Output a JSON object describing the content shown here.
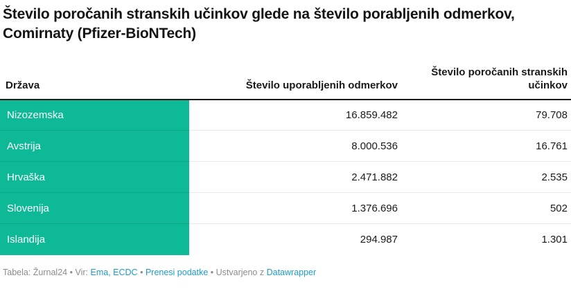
{
  "title": "Število poročanih stranskih učinkov glede na število porabljenih odmerkov, Comirnaty (Pfizer-BioNTech)",
  "table": {
    "header": {
      "country": "Država",
      "doses": "Število uporabljenih odmerkov",
      "side_effects": "Število poročanih stranskih učinkov"
    },
    "rows": [
      {
        "country": "Nizozemska",
        "doses": "16.859.482",
        "side_effects": "79.708"
      },
      {
        "country": "Avstrija",
        "doses": "8.000.536",
        "side_effects": "16.761"
      },
      {
        "country": "Hrvaška",
        "doses": "2.471.882",
        "side_effects": "2.535"
      },
      {
        "country": "Slovenija",
        "doses": "1.376.696",
        "side_effects": "502"
      },
      {
        "country": "Islandija",
        "doses": "294.987",
        "side_effects": "1.301"
      }
    ]
  },
  "footer": {
    "table_credit": "Tabela: Žurnal24",
    "separator": "•",
    "source_label": "Vir:",
    "source_link": "Ema, ECDC",
    "download_link": "Prenesi podatke",
    "created_label": "Ustvarjeno z",
    "created_link": "Datawrapper"
  },
  "colors": {
    "accent_teal": "#0db996",
    "accent_teal_border": "#0ca886",
    "link_blue": "#1d9bc9",
    "title_text": "#141414",
    "body_text": "#1a1a1a",
    "footer_text": "#8b8b8b",
    "row_border": "#e9e9e9",
    "header_border": "#1a1a1a"
  },
  "chart_data": {
    "type": "table",
    "title": "Število poročanih stranskih učinkov glede na število porabljenih odmerkov, Comirnaty (Pfizer-BioNTech)",
    "columns": [
      "Država",
      "Število uporabljenih odmerkov",
      "Število poročanih stranskih učinkov"
    ],
    "rows": [
      [
        "Nizozemska",
        16859482,
        79708
      ],
      [
        "Avstrija",
        8000536,
        16761
      ],
      [
        "Hrvaška",
        2471882,
        2535
      ],
      [
        "Slovenija",
        1376696,
        502
      ],
      [
        "Islandija",
        294987,
        1301
      ]
    ],
    "notes": "First column cells highlighted teal; numeric columns right-aligned with dot thousands separators"
  }
}
